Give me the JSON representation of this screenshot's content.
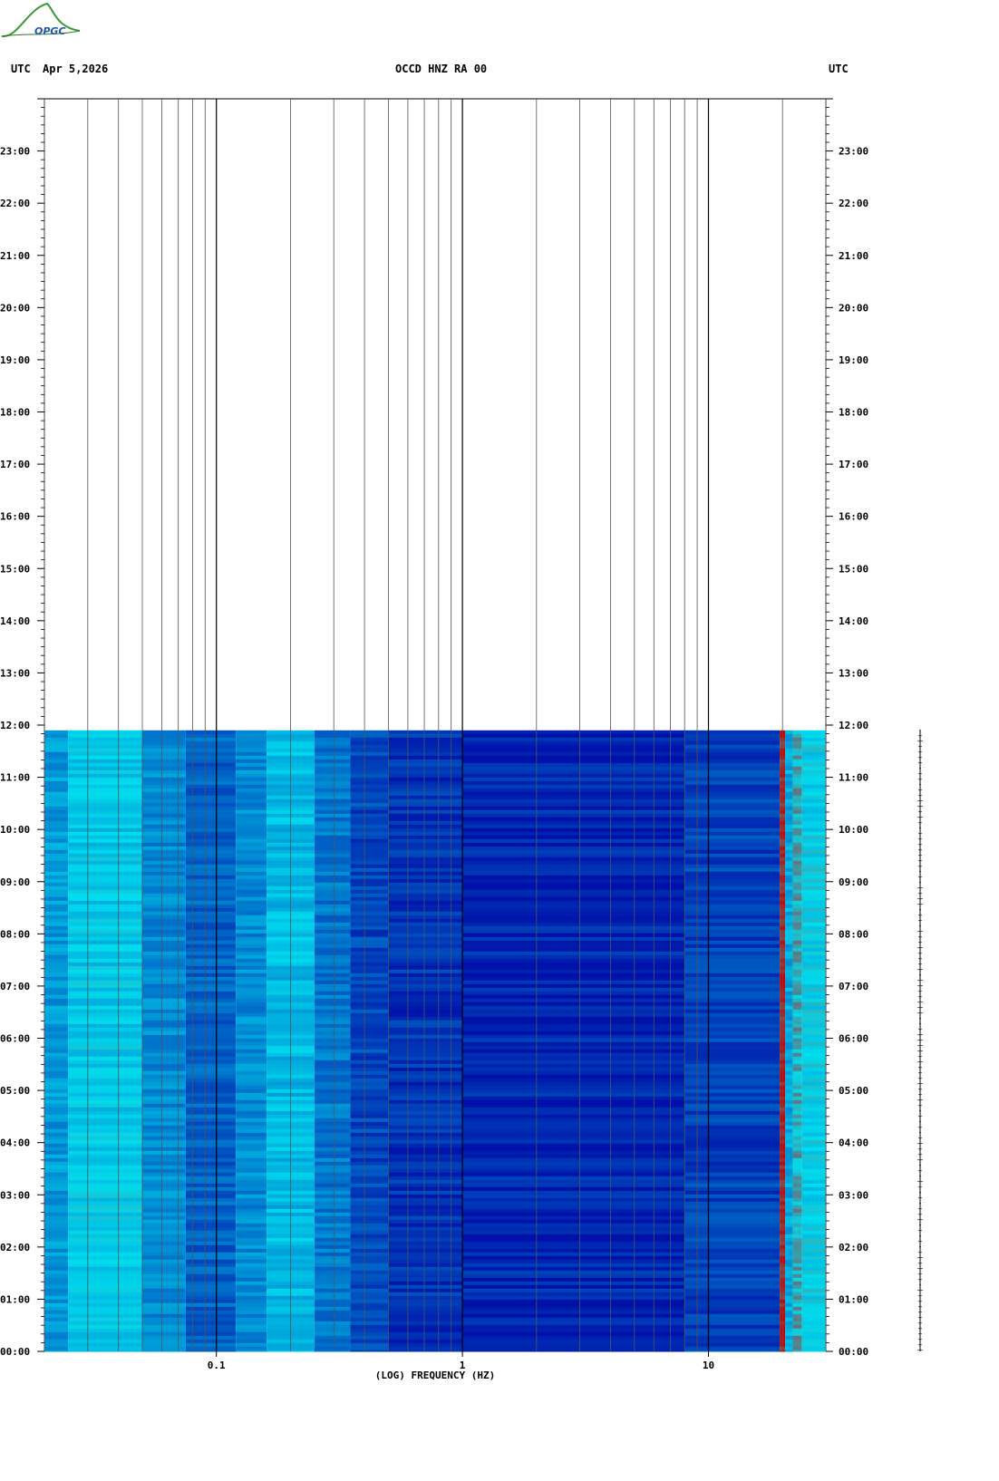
{
  "header": {
    "left_tz": "UTC",
    "date": "Apr 5,2026",
    "station": "OCCD HNZ RA 00",
    "right_tz": "UTC"
  },
  "logo": {
    "text": "OPGC"
  },
  "chart_data": {
    "type": "heatmap",
    "title": "OCCD HNZ RA 00",
    "xlabel": "(LOG) FREQUENCY (HZ)",
    "xscale": "log",
    "xlim": [
      0.02,
      30
    ],
    "x_tick_labels": [
      {
        "value": 0.1,
        "label": "0.1"
      },
      {
        "value": 1,
        "label": "1"
      },
      {
        "value": 10,
        "label": "10"
      }
    ],
    "ylim_hours": [
      0,
      24
    ],
    "y_tick_labels": [
      "00:00",
      "01:00",
      "02:00",
      "03:00",
      "04:00",
      "05:00",
      "06:00",
      "07:00",
      "08:00",
      "09:00",
      "10:00",
      "11:00",
      "12:00",
      "13:00",
      "14:00",
      "15:00",
      "16:00",
      "17:00",
      "18:00",
      "19:00",
      "20:00",
      "21:00",
      "22:00",
      "23:00"
    ],
    "data_end_hour": 11.9,
    "bands": [
      {
        "f_from": 0.02,
        "f_to": 0.025,
        "intensity": 0.4
      },
      {
        "f_from": 0.025,
        "f_to": 0.05,
        "intensity": 0.55
      },
      {
        "f_from": 0.05,
        "f_to": 0.075,
        "intensity": 0.36
      },
      {
        "f_from": 0.075,
        "f_to": 0.12,
        "intensity": 0.24
      },
      {
        "f_from": 0.12,
        "f_to": 0.16,
        "intensity": 0.36
      },
      {
        "f_from": 0.16,
        "f_to": 0.25,
        "intensity": 0.5
      },
      {
        "f_from": 0.25,
        "f_to": 0.35,
        "intensity": 0.3
      },
      {
        "f_from": 0.35,
        "f_to": 0.5,
        "intensity": 0.16
      },
      {
        "f_from": 0.5,
        "f_to": 1.0,
        "intensity": 0.1
      },
      {
        "f_from": 1.0,
        "f_to": 8.0,
        "intensity": 0.06
      },
      {
        "f_from": 8.0,
        "f_to": 19.5,
        "intensity": 0.14
      },
      {
        "f_from": 19.5,
        "f_to": 20.5,
        "intensity": 0.95
      },
      {
        "f_from": 20.5,
        "f_to": 22.0,
        "intensity": 0.45
      },
      {
        "f_from": 22.0,
        "f_to": 24.0,
        "intensity": 0.7
      },
      {
        "f_from": 24.0,
        "f_to": 30.0,
        "intensity": 0.58
      }
    ],
    "colors": {
      "low": "#0011aa",
      "mid": "#00ddee",
      "high": "#cc0000",
      "grid": "#555555"
    }
  }
}
